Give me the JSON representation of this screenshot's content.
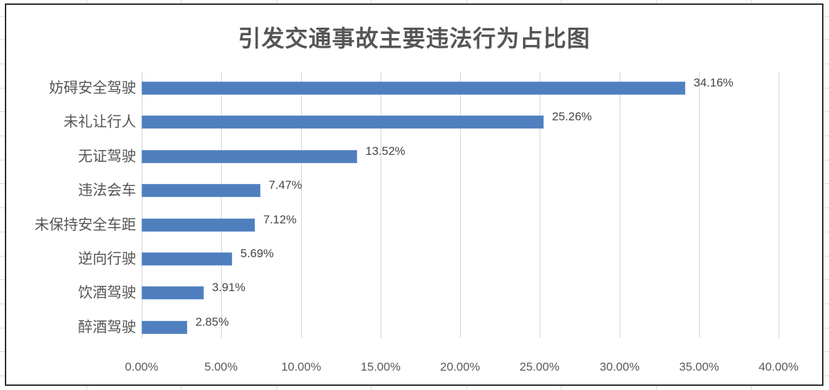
{
  "chart_data": {
    "type": "bar",
    "orientation": "horizontal",
    "title": "引发交通事故主要违法行为占比图",
    "xlabel": "",
    "ylabel": "",
    "categories": [
      "妨碍安全驾驶",
      "未礼让行人",
      "无证驾驶",
      "违法会车",
      "未保持安全车距",
      "逆向行驶",
      "饮酒驾驶",
      "醉酒驾驶"
    ],
    "values": [
      34.16,
      25.26,
      13.52,
      7.47,
      7.12,
      5.69,
      3.91,
      2.85
    ],
    "value_labels": [
      "34.16%",
      "25.26%",
      "13.52%",
      "7.47%",
      "7.12%",
      "5.69%",
      "3.91%",
      "2.85%"
    ],
    "xlim": [
      0,
      40
    ],
    "x_ticks": [
      "0.00%",
      "5.00%",
      "10.00%",
      "15.00%",
      "20.00%",
      "25.00%",
      "30.00%",
      "35.00%",
      "40.00%"
    ],
    "grid": "vertical",
    "legend": "none",
    "bar_color": "#4f7fbe"
  }
}
